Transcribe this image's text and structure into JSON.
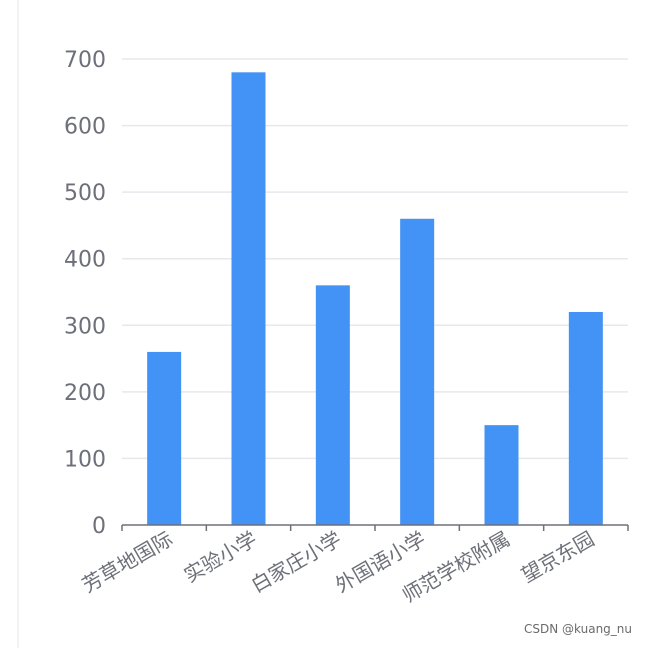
{
  "chart_data": {
    "type": "bar",
    "categories": [
      "芳草地国际",
      "实验小学",
      "白家庄小学",
      "外国语小学",
      "师范学校附属",
      "望京东园"
    ],
    "values": [
      260,
      680,
      360,
      460,
      150,
      320
    ],
    "ylim": [
      0,
      700
    ],
    "yticks": [
      0,
      100,
      200,
      300,
      400,
      500,
      600,
      700
    ],
    "grid": true,
    "bar_color": "#4293f5",
    "grid_color": "#e6e8ec",
    "axis_color": "#6e7079",
    "label_color": "#6e7079"
  },
  "watermark": "CSDN @kuang_nu"
}
